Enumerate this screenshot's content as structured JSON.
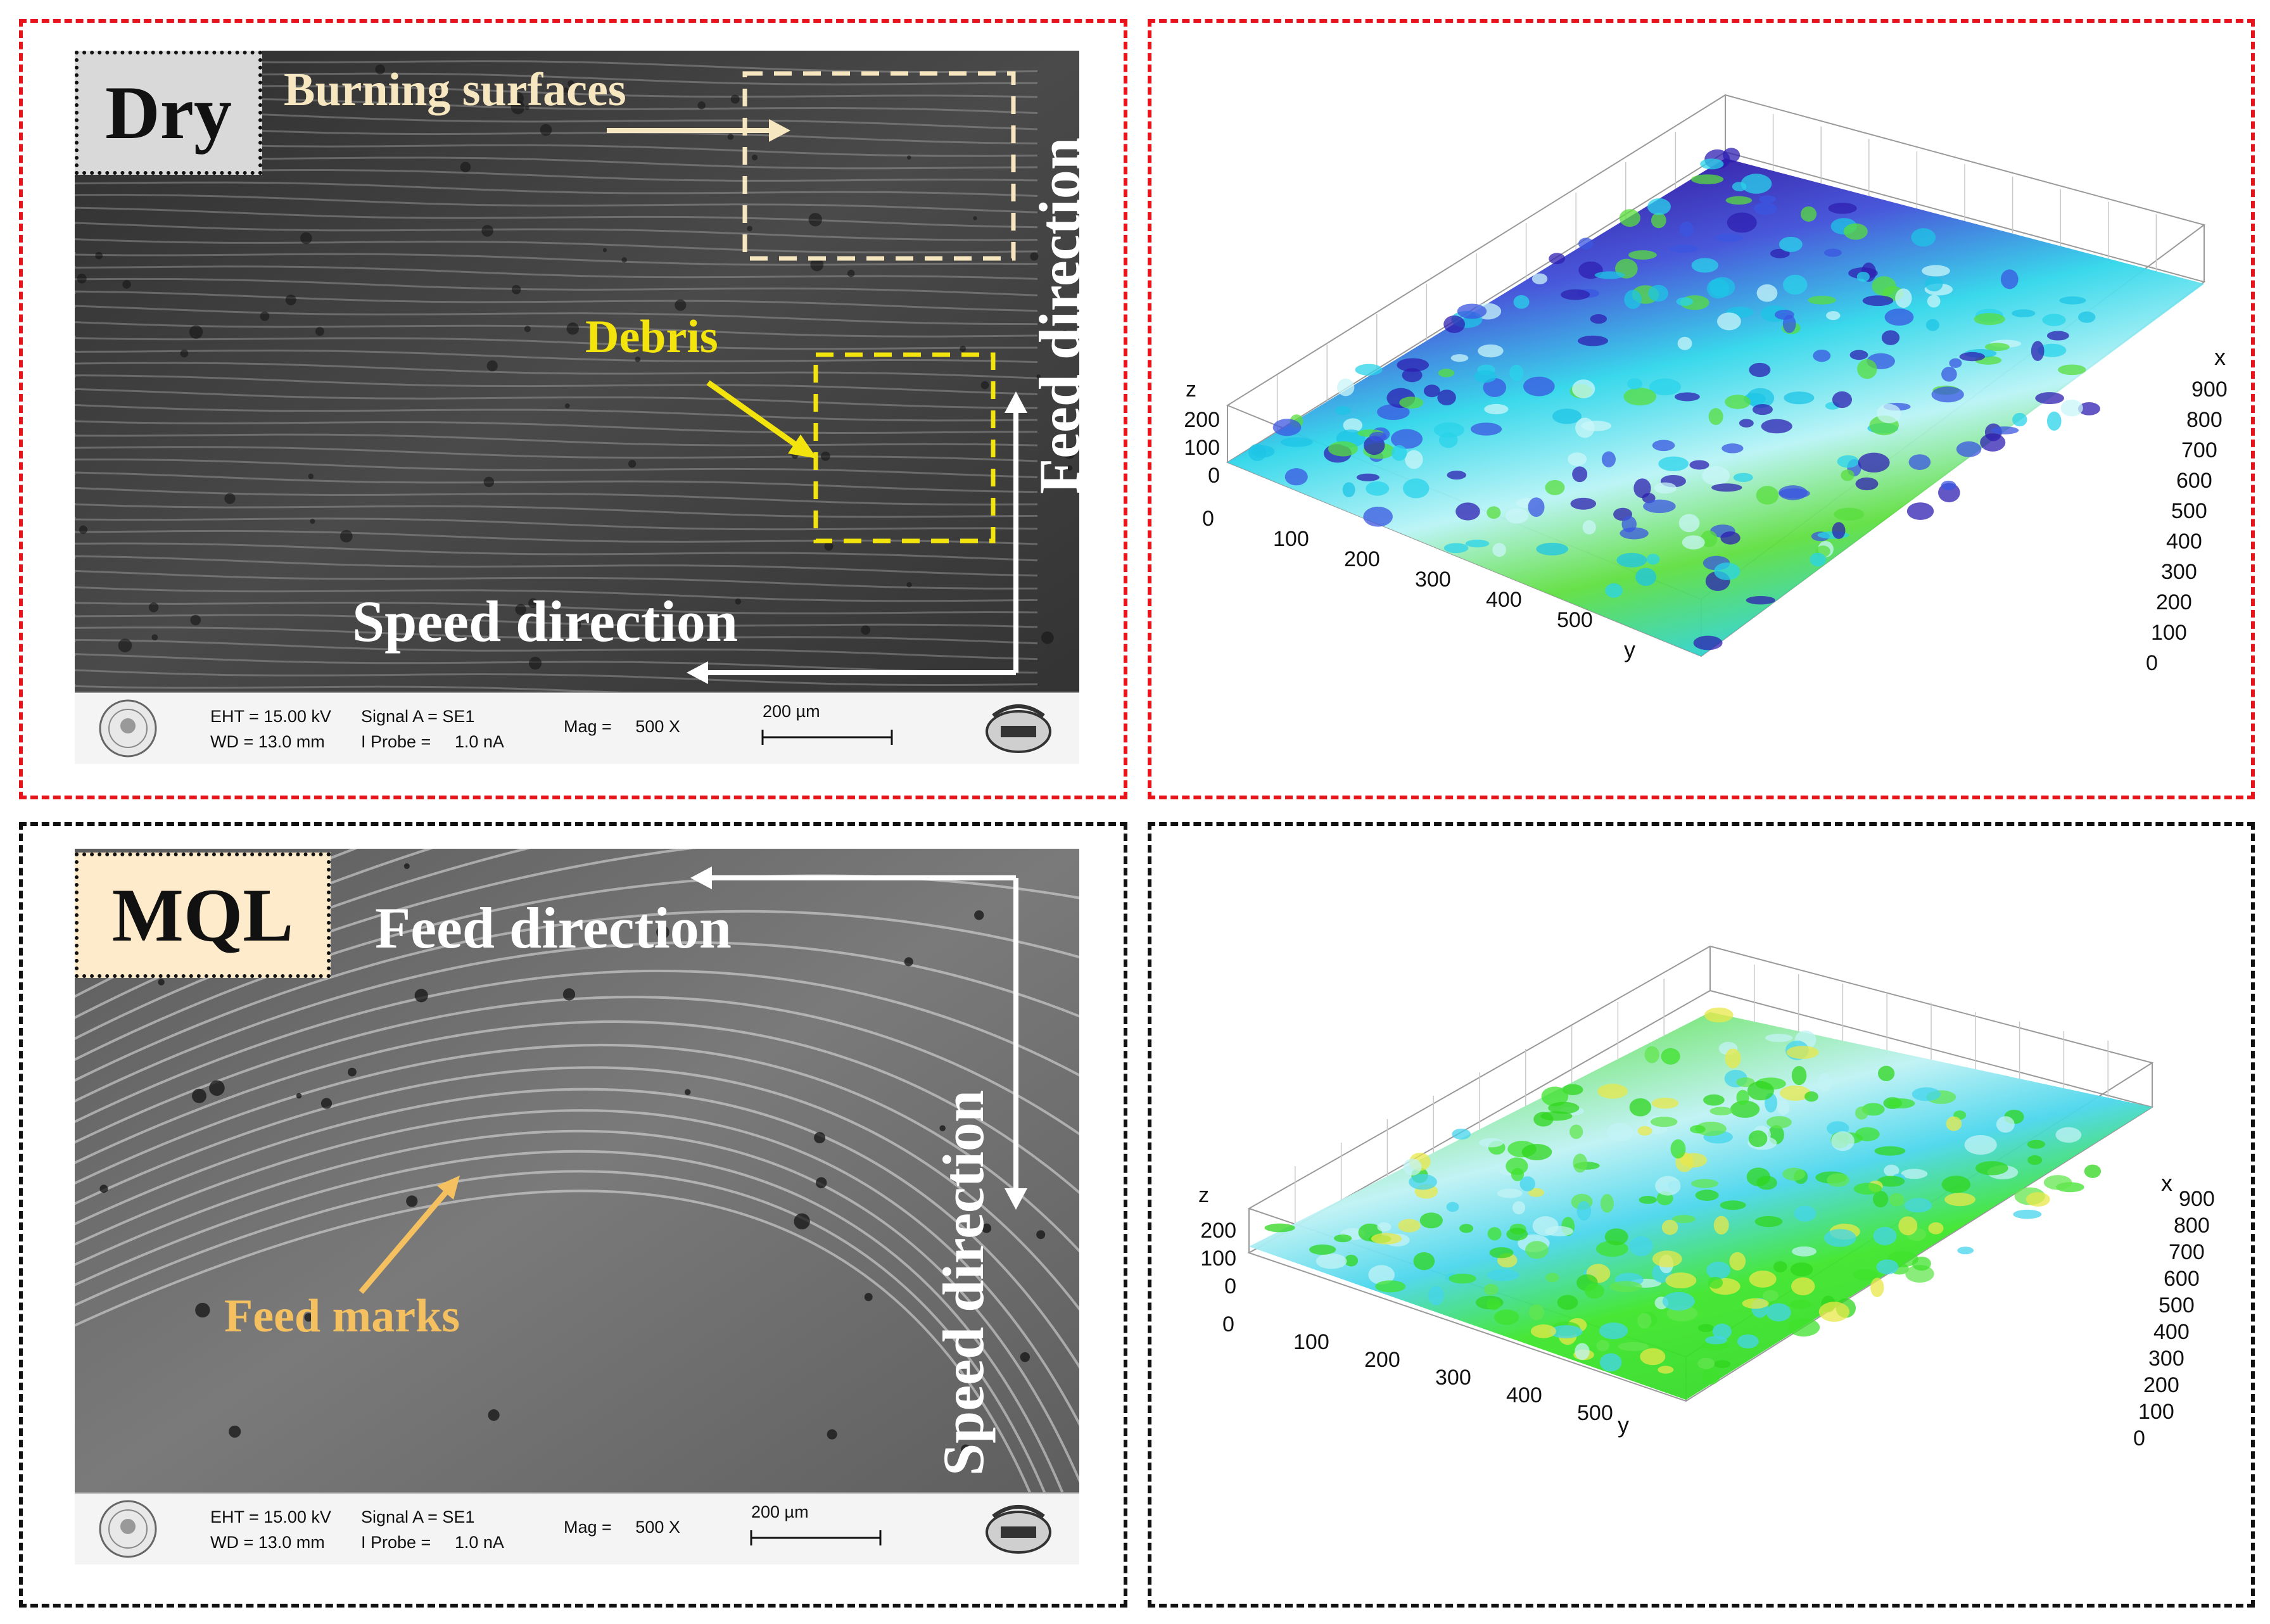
{
  "colors": {
    "dry_frame": "#e8141c",
    "mql_frame": "#111111",
    "dry_label_bg": "#d9d9d9",
    "mql_label_bg": "#fdebcb",
    "burning_text": "#f6e7c1",
    "debris_text": "#f2e40c",
    "feed_marks_text": "#f4c060",
    "annotation_white": "#ffffff"
  },
  "dry": {
    "label": "Dry",
    "burning_surfaces": "Burning surfaces",
    "debris": "Debris",
    "feed_direction": "Feed direction",
    "speed_direction": "Speed direction",
    "info": {
      "eht": "EHT = 15.00 kV",
      "wd": "WD = 13.0 mm",
      "signal": "Signal A = SE1",
      "probe": "I Probe =     1.0 nA",
      "mag": "Mag =     500 X",
      "scale": "200 µm"
    },
    "plot": {
      "x_label": "x",
      "y_label": "y",
      "z_label": "z",
      "z_ticks": [
        "200",
        "100",
        "0"
      ],
      "y_ticks": [
        "0",
        "100",
        "200",
        "300",
        "400",
        "500"
      ],
      "x_ticks": [
        "0",
        "100",
        "200",
        "300",
        "400",
        "500",
        "600",
        "700",
        "800",
        "900"
      ]
    }
  },
  "mql": {
    "label": "MQL",
    "feed_direction": "Feed direction",
    "speed_direction": "Speed direction",
    "feed_marks": "Feed marks",
    "info": {
      "eht": "EHT = 15.00 kV",
      "wd": "WD = 13.0 mm",
      "signal": "Signal A = SE1",
      "probe": "I Probe =     1.0 nA",
      "mag": "Mag =     500 X",
      "scale": "200 µm"
    },
    "plot": {
      "x_label": "x",
      "y_label": "y",
      "z_label": "z",
      "z_ticks": [
        "200",
        "100",
        "0"
      ],
      "y_ticks": [
        "0",
        "100",
        "200",
        "300",
        "400",
        "500"
      ],
      "x_ticks": [
        "0",
        "100",
        "200",
        "300",
        "400",
        "500",
        "600",
        "700",
        "800",
        "900"
      ]
    }
  }
}
